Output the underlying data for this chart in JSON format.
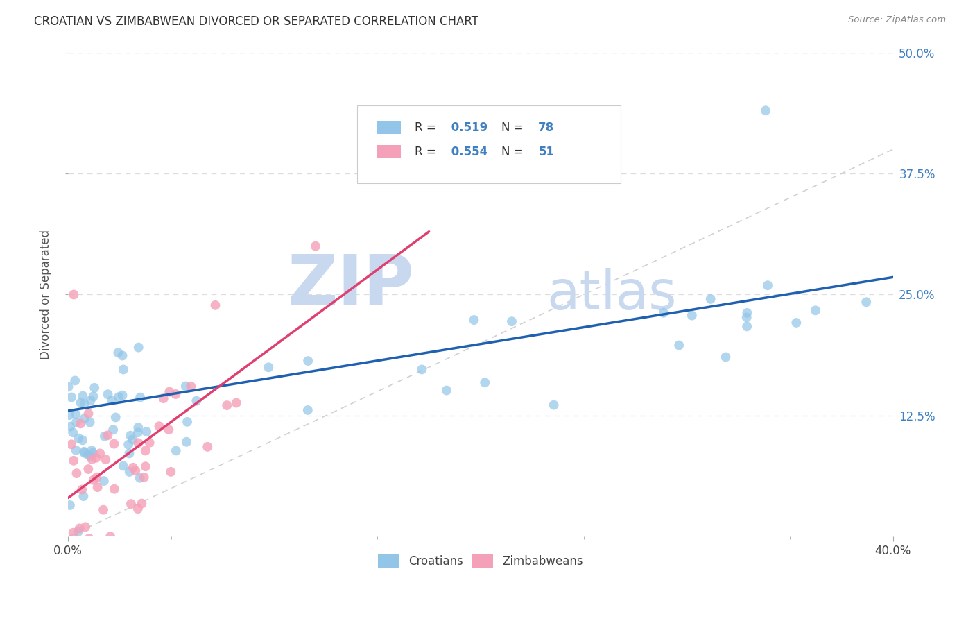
{
  "title": "CROATIAN VS ZIMBABWEAN DIVORCED OR SEPARATED CORRELATION CHART",
  "source": "Source: ZipAtlas.com",
  "ylabel": "Divorced or Separated",
  "xlim": [
    0.0,
    0.4
  ],
  "ylim": [
    0.0,
    0.5
  ],
  "xtick_left_label": "0.0%",
  "xtick_right_label": "40.0%",
  "ytick_labels": [
    "12.5%",
    "25.0%",
    "37.5%",
    "50.0%"
  ],
  "yticks": [
    0.125,
    0.25,
    0.375,
    0.5
  ],
  "R_croatian": 0.519,
  "N_croatian": 78,
  "R_zimbabwean": 0.554,
  "N_zimbabwean": 51,
  "croatian_color": "#92C5E8",
  "zimbabwean_color": "#F4A0B8",
  "trend_croatian_color": "#2060B0",
  "trend_zimbabwean_color": "#E04070",
  "diagonal_color": "#CCCCCC",
  "background_color": "#FFFFFF",
  "watermark_zip": "ZIP",
  "watermark_atlas": "atlas",
  "watermark_color": "#C8D8EE",
  "legend_text_color": "#333333",
  "legend_R_color": "#4080C0",
  "legend_N_color": "#4080C0",
  "right_tick_color": "#4080C0",
  "grid_color": "#DDDDDD"
}
